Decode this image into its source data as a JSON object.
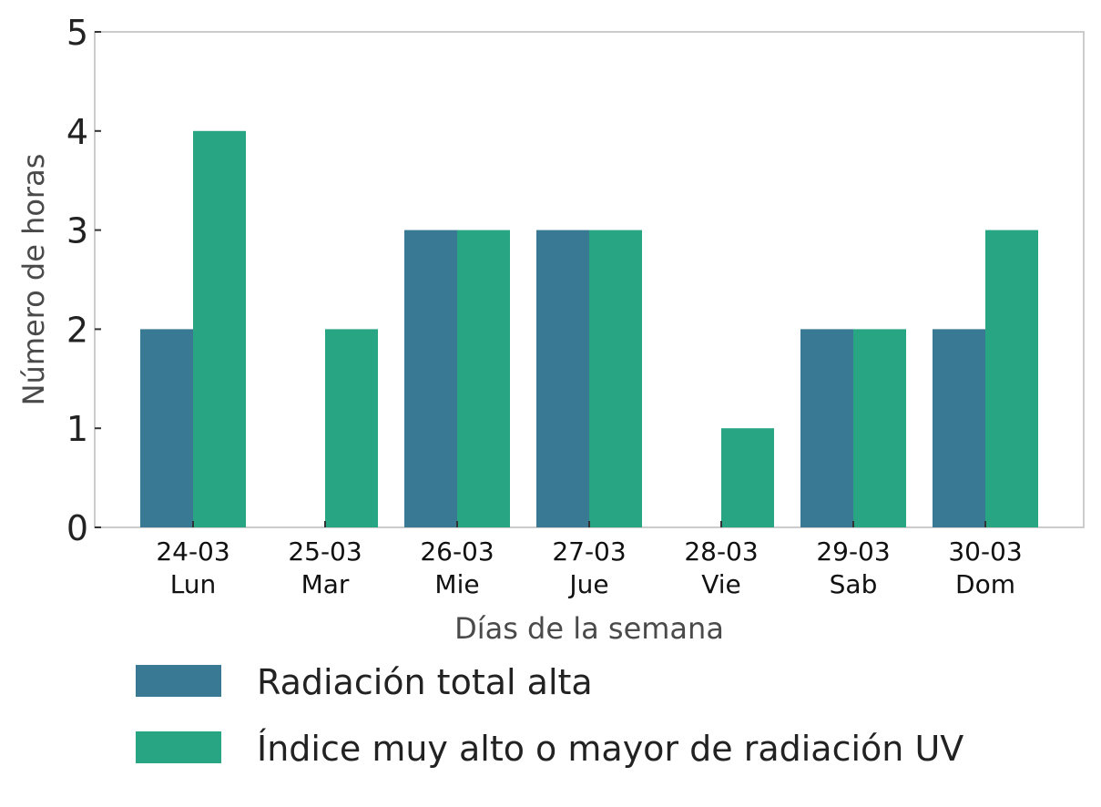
{
  "chart_data": {
    "type": "bar",
    "categories": [
      [
        "24-03",
        "Lun"
      ],
      [
        "25-03",
        "Mar"
      ],
      [
        "26-03",
        "Mie"
      ],
      [
        "27-03",
        "Jue"
      ],
      [
        "28-03",
        "Vie"
      ],
      [
        "29-03",
        "Sab"
      ],
      [
        "30-03",
        "Dom"
      ]
    ],
    "series": [
      {
        "name": "Radiación total alta",
        "color": "#397993",
        "values": [
          2,
          0,
          3,
          3,
          0,
          2,
          2
        ]
      },
      {
        "name": "Índice muy alto o mayor de radiación UV",
        "color": "#28a583",
        "values": [
          4,
          2,
          3,
          3,
          1,
          2,
          3
        ]
      }
    ],
    "xlabel": "Días de la semana",
    "ylabel": "Número de horas",
    "ylim": [
      0,
      5
    ],
    "yticks": [
      "0",
      "1",
      "2",
      "3",
      "4",
      "5"
    ],
    "grid": false,
    "legend_position": "bottom"
  }
}
